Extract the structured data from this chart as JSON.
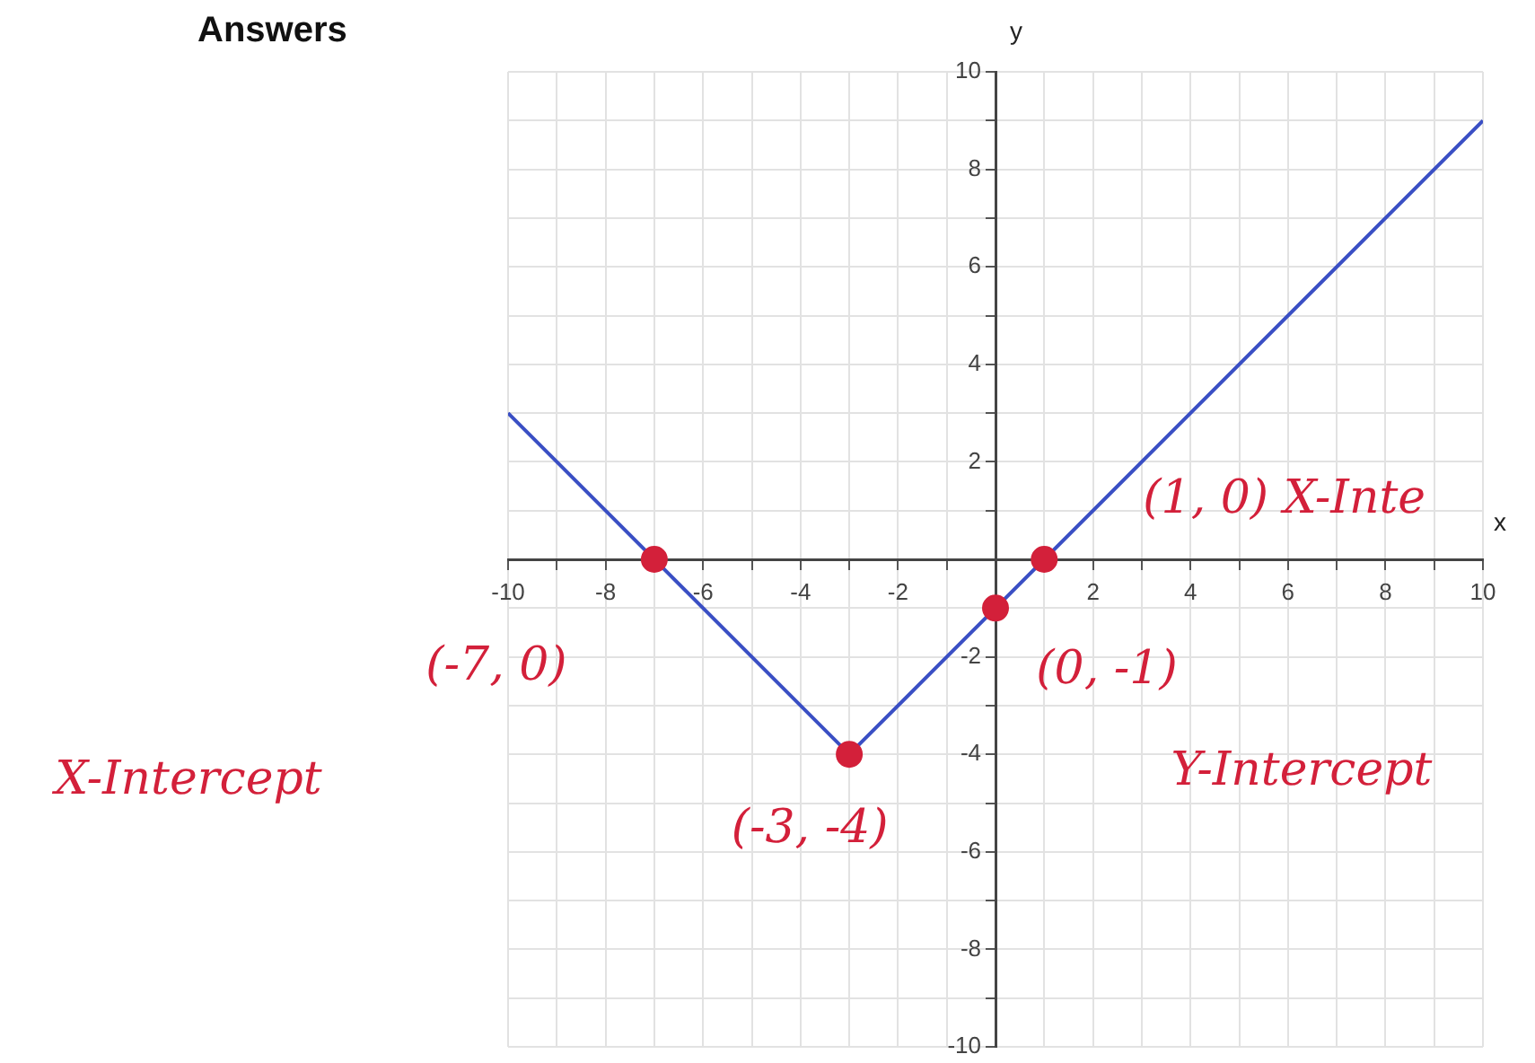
{
  "chart_data": {
    "type": "line",
    "title": "Answers",
    "xlabel": "x",
    "ylabel": "y",
    "xlim": [
      -10,
      10
    ],
    "ylim": [
      -10,
      10
    ],
    "xticks": [
      -10,
      {
        "value": -9,
        "label": null
      },
      -8,
      {
        "value": -7,
        "label": null
      },
      -6,
      {
        "value": -5,
        "label": null
      },
      -4,
      {
        "value": -3,
        "label": null
      },
      -2,
      {
        "value": -1,
        "label": null
      },
      {
        "value": 0,
        "label": null
      },
      {
        "value": 1,
        "label": null
      },
      2,
      {
        "value": 3,
        "label": null
      },
      4,
      {
        "value": 5,
        "label": null
      },
      6,
      {
        "value": 7,
        "label": null
      },
      8,
      {
        "value": 9,
        "label": null
      },
      10
    ],
    "yticks": [
      -10,
      {
        "value": -9,
        "label": null
      },
      -8,
      {
        "value": -7,
        "label": null
      },
      -6,
      {
        "value": -5,
        "label": null
      },
      -4,
      {
        "value": -3,
        "label": null
      },
      -2,
      {
        "value": -1,
        "label": null
      },
      {
        "value": 0,
        "label": null
      },
      {
        "value": 1,
        "label": null
      },
      2,
      {
        "value": 3,
        "label": null
      },
      4,
      {
        "value": 5,
        "label": null
      },
      6,
      {
        "value": 7,
        "label": null
      },
      8,
      {
        "value": 9,
        "label": null
      },
      10
    ],
    "grid": true,
    "legend": false,
    "series": [
      {
        "type": "line",
        "color": "#3a4fc4",
        "x": [
          -10,
          -3,
          10
        ],
        "values": [
          3,
          -4,
          9
        ],
        "marker": "none"
      },
      {
        "type": "scatter",
        "color": "#d3203a",
        "x": [
          -7,
          -3,
          0,
          1
        ],
        "values": [
          0,
          -4,
          -1,
          0
        ],
        "marker": "circle"
      }
    ],
    "annotations": [
      {
        "text": "(1, 0) X-Inte",
        "x": 1,
        "y": 0
      },
      {
        "text": "(-7, 0)",
        "x": -7,
        "y": 0
      },
      "X-Intercept",
      {
        "text": "(-3, -4)",
        "x": -3,
        "y": -4
      },
      {
        "text": "(0, -1)",
        "x": 0,
        "y": -1
      },
      "Y-Intercept"
    ]
  }
}
